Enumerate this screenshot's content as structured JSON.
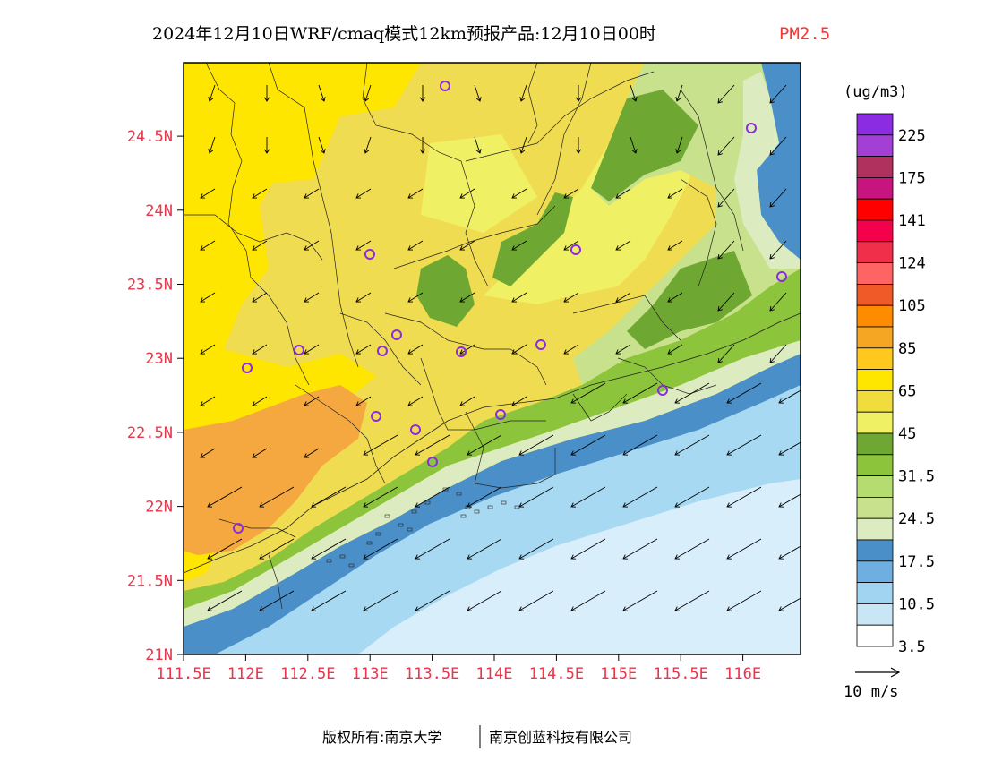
{
  "title": {
    "main": "2024年12月10日WRF/cmaq模式12km预报产品:12月10日00时",
    "variable": "PM2.5",
    "variable_color": "#ff3333"
  },
  "axes": {
    "tick_color": "#e8364a",
    "x_ticks": [
      "111.5E",
      "112E",
      "112.5E",
      "113E",
      "113.5E",
      "114E",
      "114.5E",
      "115E",
      "115.5E",
      "116E"
    ],
    "y_ticks": [
      "24.5N",
      "24N",
      "23.5N",
      "23N",
      "22.5N",
      "22N",
      "21.5N",
      "21N"
    ]
  },
  "colorbar": {
    "unit": "(ug/m3)",
    "colors_top_to_bottom": [
      "#8b2be2",
      "#a43fd6",
      "#b0305e",
      "#c8147e",
      "#ff0000",
      "#f5004a",
      "#f0304a",
      "#ff6464",
      "#f05a28",
      "#ff8c00",
      "#f5a623",
      "#ffc81e",
      "#ffe600",
      "#f0dc3c",
      "#f0f064",
      "#6ea832",
      "#8cc43c",
      "#b4dc6e",
      "#c8e18c",
      "#dcecc0",
      "#4a8fc8",
      "#6eaee0",
      "#a0d4f0",
      "#c8e6f6",
      "#ffffff"
    ],
    "labels": [
      "225",
      "175",
      "141",
      "124",
      "105",
      "85",
      "65",
      "45",
      "31.5",
      "24.5",
      "17.5",
      "10.5",
      "3.5"
    ]
  },
  "wind_legend": {
    "label": "10  m/s"
  },
  "footer": {
    "left": "版权所有:南京大学",
    "right": "南京创蓝科技有限公司"
  },
  "map_colors": {
    "ocean_light": "#d8eefa",
    "ocean_mid": "#a7d9f3",
    "ocean_dark": "#6fb0e0",
    "ocean_deep": "#4a8fc8",
    "coast_pale": "#dcecc0",
    "green_light": "#c8e18c",
    "green_mid": "#8cc43c",
    "green_dark": "#6ea832",
    "yellow_pale": "#f0f064",
    "yellow_mid": "#f0dc50",
    "yellow_bright": "#ffe600",
    "orange": "#f5a840",
    "station_color": "#8b2be2"
  }
}
